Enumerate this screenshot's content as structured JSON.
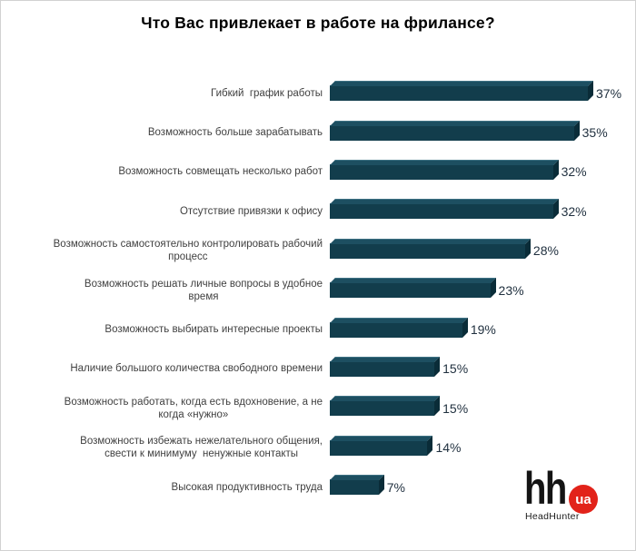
{
  "title": "Что Вас привлекает в работе на фрилансе?",
  "chart_data": {
    "type": "bar",
    "orientation": "horizontal",
    "title": "Что Вас привлекает в работе на фрилансе?",
    "categories": [
      "Гибкий  график работы",
      "Возможность больше зарабатывать",
      "Возможность совмещать несколько работ",
      "Отсутствие привязки к офису",
      "Возможность самостоятельно контролировать рабочий\nпроцесс",
      "Возможность решать личные вопросы в удобное\nвремя",
      "Возможность выбирать интересные проекты",
      "Наличие большого количества свободного времени",
      "Возможность работать, когда есть вдохновение, а не\nкогда «нужно»",
      "Возможность избежать нежелательного общения,\nсвести к минимуму  ненужные контакты",
      "Высокая продуктивность труда"
    ],
    "values": [
      37,
      35,
      32,
      32,
      28,
      23,
      19,
      15,
      15,
      14,
      7
    ],
    "unit": "%",
    "xlim": [
      0,
      40
    ],
    "grid": false,
    "legend": "none",
    "bar_style_3d": true,
    "colors": {
      "bar_front": "#123d4c",
      "bar_top": "#1d4f61",
      "bar_side": "#0a2c38",
      "value_text": "#1f2f3e",
      "label_text": "#3f3f3f"
    }
  },
  "logo": {
    "hh_text": "hh",
    "ua_text": "ua",
    "caption": "HeadHunter",
    "badge_color": "#e2231a"
  }
}
